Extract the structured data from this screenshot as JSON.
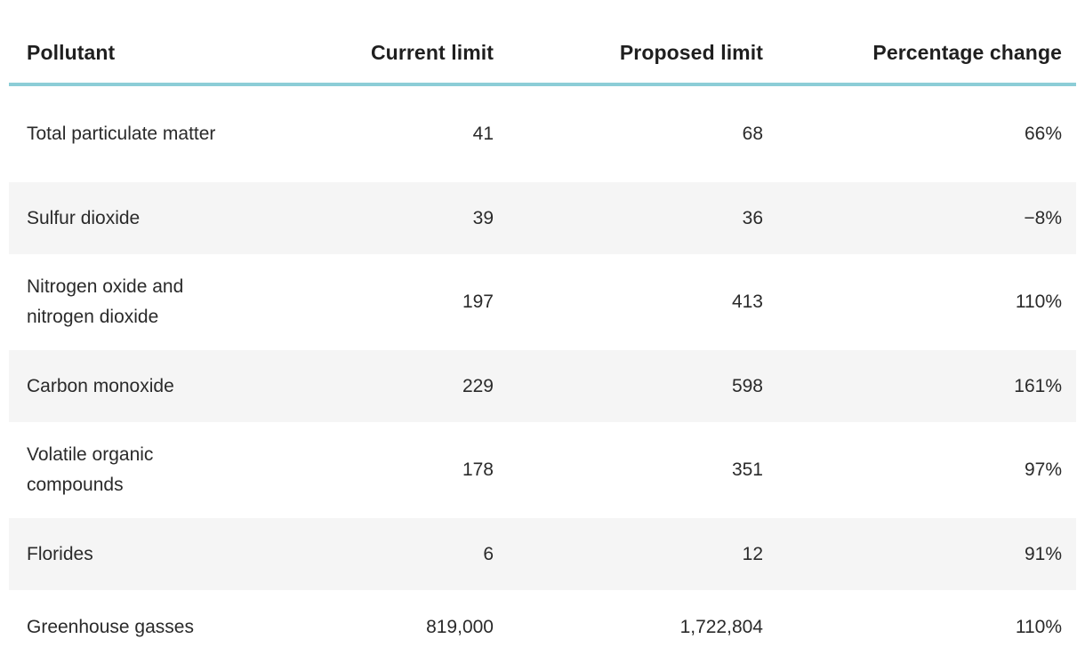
{
  "table": {
    "columns": [
      {
        "id": "pollutant",
        "label": "Pollutant",
        "align": "left"
      },
      {
        "id": "current",
        "label": "Current limit",
        "align": "right"
      },
      {
        "id": "proposed",
        "label": "Proposed limit",
        "align": "right"
      },
      {
        "id": "change",
        "label": "Percentage change",
        "align": "right"
      }
    ],
    "rows": [
      {
        "pollutant": "Total particulate matter",
        "current": "41",
        "proposed": "68",
        "change": "66%"
      },
      {
        "pollutant": "Sulfur dioxide",
        "current": "39",
        "proposed": "36",
        "change": "−8%"
      },
      {
        "pollutant": "Nitrogen oxide and nitrogen dioxide",
        "current": "197",
        "proposed": "413",
        "change": "110%"
      },
      {
        "pollutant": "Carbon monoxide",
        "current": "229",
        "proposed": "598",
        "change": "161%"
      },
      {
        "pollutant": "Volatile organic compounds",
        "current": "178",
        "proposed": "351",
        "change": "97%"
      },
      {
        "pollutant": "Florides",
        "current": "6",
        "proposed": "12",
        "change": "91%"
      },
      {
        "pollutant": "Greenhouse gasses",
        "current": "819,000",
        "proposed": "1,722,804",
        "change": "110%"
      }
    ]
  },
  "colors": {
    "accent_rule": "#8ccdd7",
    "row_alt_bg": "#f5f5f5",
    "header_text": "#1f1f1f",
    "body_text": "#2a2a2a"
  }
}
